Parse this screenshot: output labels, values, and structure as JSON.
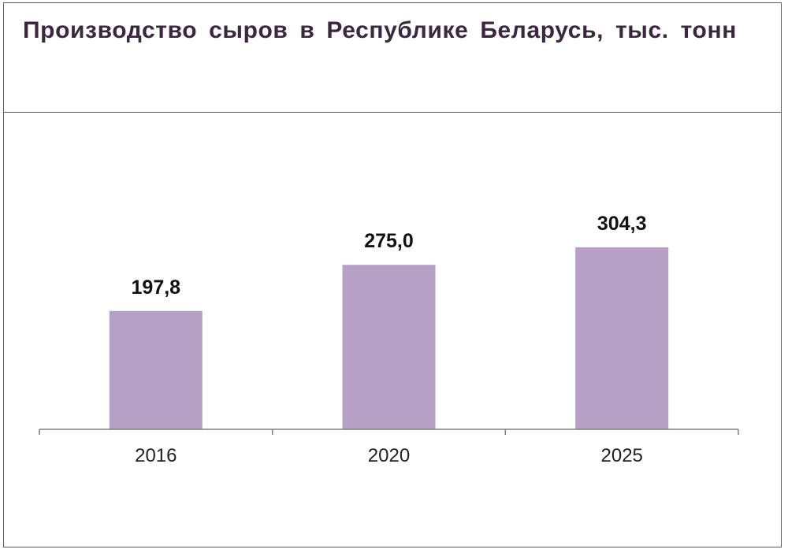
{
  "title": "Производство сыров в Республике Беларусь, тыс. тонн",
  "colors": {
    "bar": "#b6a0c5",
    "title": "#3b2740",
    "axis": "#7f7f7f",
    "border": "#5a5a5a"
  },
  "chart_data": {
    "type": "bar",
    "title": "Производство сыров в Республике Беларусь, тыс. тонн",
    "categories": [
      "2016",
      "2020",
      "2025"
    ],
    "values": [
      197.8,
      275.0,
      304.3
    ],
    "value_labels": [
      "197,8",
      "275,0",
      "304,3"
    ],
    "xlabel": "",
    "ylabel": "",
    "ylim": [
      0,
      350
    ],
    "grid": false,
    "legend": "none"
  }
}
